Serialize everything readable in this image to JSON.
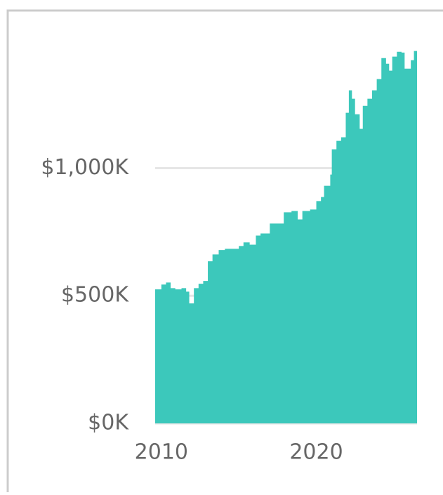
{
  "chart_data": {
    "type": "area",
    "x": [
      2009.6,
      2010.0,
      2010.3,
      2010.6,
      2010.9,
      2011.3,
      2011.6,
      2011.8,
      2012.1,
      2012.4,
      2012.7,
      2013.0,
      2013.3,
      2013.7,
      2014.1,
      2014.5,
      2015.0,
      2015.3,
      2015.7,
      2016.1,
      2016.4,
      2017.0,
      2017.5,
      2017.9,
      2018.4,
      2018.8,
      2019.1,
      2019.6,
      2020.0,
      2020.3,
      2020.5,
      2020.9,
      2021.0,
      2021.3,
      2021.6,
      2021.9,
      2022.1,
      2022.3,
      2022.5,
      2022.8,
      2023.0,
      2023.3,
      2023.6,
      2023.9,
      2024.2,
      2024.5,
      2024.7,
      2024.9,
      2025.2,
      2025.5,
      2025.7,
      2026.1,
      2026.3,
      2026.5
    ],
    "values": [
      525,
      544,
      552,
      530,
      525,
      530,
      516,
      470,
      530,
      547,
      558,
      635,
      662,
      679,
      684,
      684,
      695,
      709,
      700,
      736,
      744,
      783,
      783,
      827,
      832,
      799,
      832,
      838,
      871,
      887,
      931,
      975,
      1074,
      1107,
      1121,
      1217,
      1305,
      1272,
      1211,
      1154,
      1244,
      1272,
      1305,
      1349,
      1431,
      1409,
      1382,
      1437,
      1456,
      1453,
      1390,
      1423,
      1459,
      1459
    ],
    "color": "#3cc8bb",
    "xlim": [
      2009.6,
      2026.5
    ],
    "xticks": [
      2010,
      2020
    ],
    "ylim": [
      0,
      1480
    ],
    "yticks": [
      {
        "value": 0,
        "label": "$0K"
      },
      {
        "value": 500,
        "label": "$500K"
      },
      {
        "value": 1000,
        "label": "$1,000K"
      }
    ],
    "grid": true
  }
}
